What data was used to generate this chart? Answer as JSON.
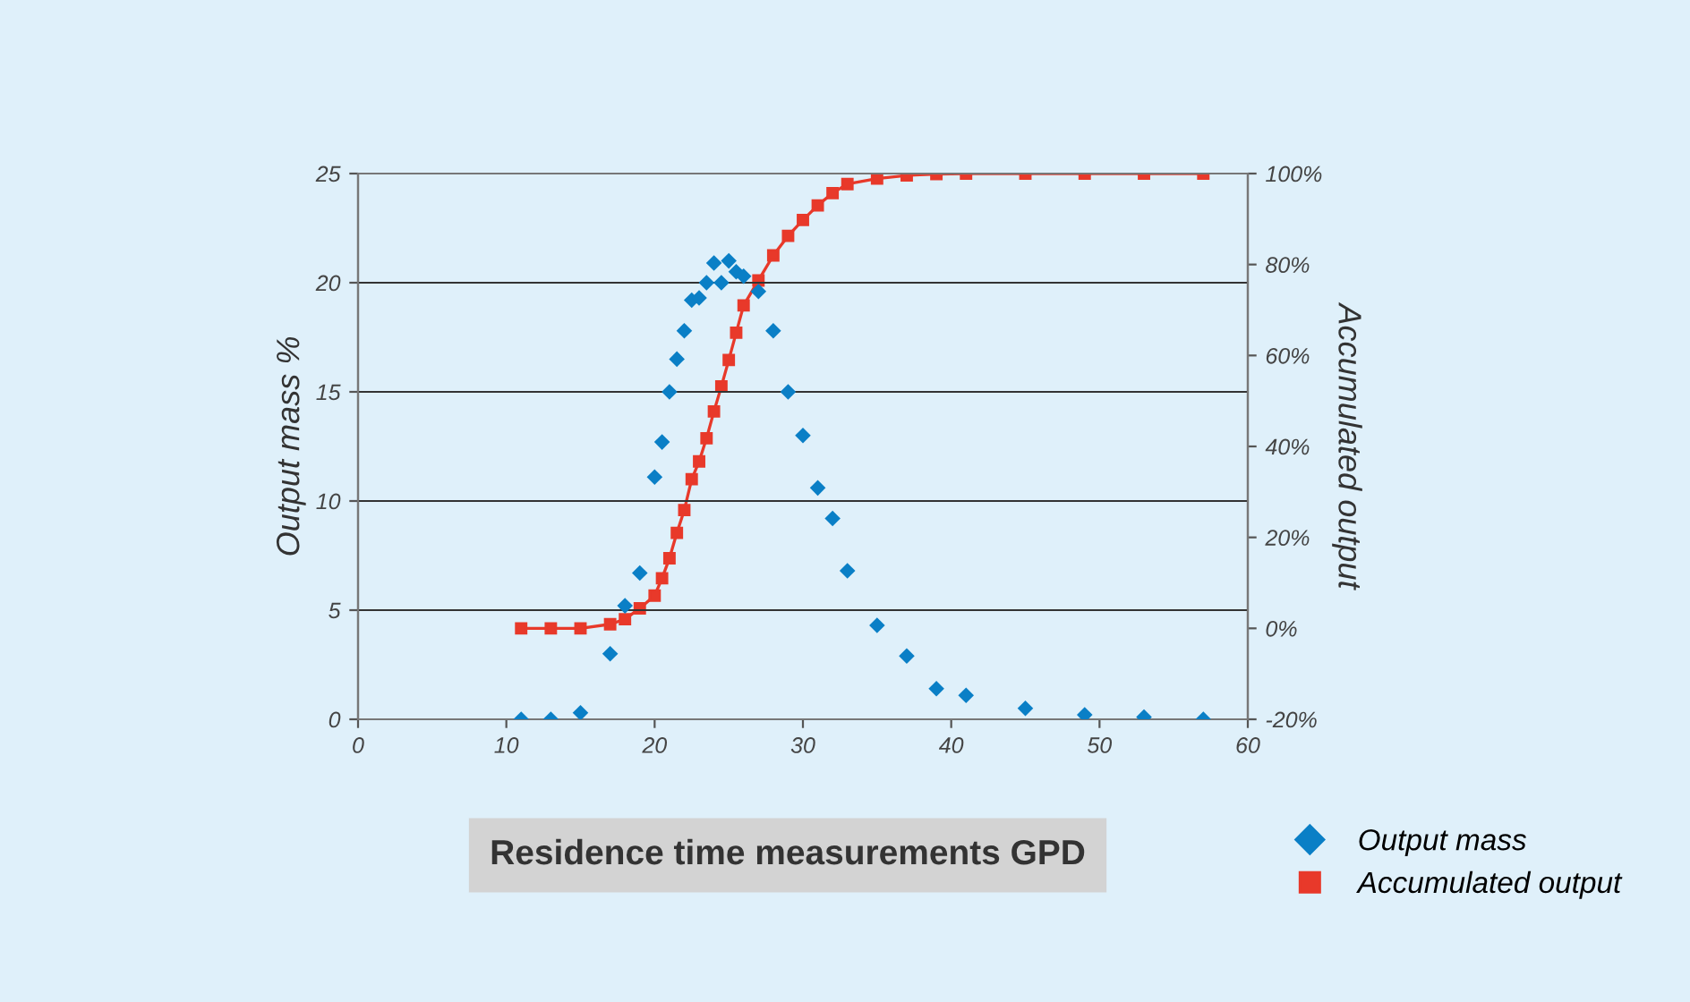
{
  "chart_data": {
    "type": "scatter",
    "title": "Residence time measurements GPD",
    "ylabel": "Output mass %",
    "y2label": "Accumulated output",
    "xlim": [
      0,
      60
    ],
    "xticks": [
      0,
      10,
      20,
      30,
      40,
      50,
      60
    ],
    "ylim": [
      0,
      25
    ],
    "yticks": [
      0,
      5,
      10,
      15,
      20,
      25
    ],
    "y2lim": [
      -20,
      100
    ],
    "y2ticks": [
      {
        "value": -20,
        "label": "-20%"
      },
      {
        "value": 0,
        "label": "0%"
      },
      {
        "value": 20,
        "label": "20%"
      },
      {
        "value": 40,
        "label": "40%"
      },
      {
        "value": 60,
        "label": "60%"
      },
      {
        "value": 80,
        "label": "80%"
      },
      {
        "value": 100,
        "label": "100%"
      }
    ],
    "grid": "y",
    "legend": "bottom right",
    "series": [
      {
        "name": "Output mass",
        "marker": "diamond",
        "color": "#0a7fc6",
        "x": [
          11,
          13,
          15,
          17,
          18,
          19,
          20,
          20.5,
          21,
          21.5,
          22,
          22.5,
          23,
          23.5,
          24,
          24.5,
          25,
          25.5,
          26,
          27,
          28,
          29,
          30,
          31,
          32,
          33,
          35,
          37,
          39,
          41,
          45,
          49,
          53,
          57
        ],
        "values": [
          0,
          0,
          0.3,
          3.0,
          5.2,
          6.7,
          11.1,
          12.7,
          15,
          16.5,
          17.8,
          19.2,
          19.3,
          20.0,
          20.9,
          20.0,
          21.0,
          20.5,
          20.3,
          19.6,
          17.8,
          15,
          13,
          10.6,
          9.2,
          6.8,
          4.3,
          2.9,
          1.4,
          1.1,
          0.5,
          0.2,
          0.1,
          0
        ]
      },
      {
        "name": "Accumulated output",
        "type": "line",
        "axis": "y2",
        "marker": "square",
        "color": "#e8392a",
        "x": [
          11,
          13,
          15,
          17,
          18,
          19,
          20,
          20.5,
          21,
          21.5,
          22,
          22.5,
          23,
          23.5,
          24,
          24.5,
          25,
          25.5,
          26,
          27,
          28,
          29,
          30,
          31,
          32,
          33,
          35,
          37,
          39,
          41,
          45,
          49,
          53,
          57
        ],
        "values": [
          0,
          0,
          0,
          0.9,
          2,
          4.4,
          7.2,
          11,
          15.4,
          21,
          26,
          32.8,
          36.7,
          41.8,
          47.7,
          53.2,
          59,
          65,
          71,
          76.5,
          82,
          86.3,
          89.8,
          93,
          95.7,
          97.7,
          98.9,
          99.6,
          99.9,
          100,
          100,
          100,
          100,
          100
        ]
      }
    ]
  }
}
